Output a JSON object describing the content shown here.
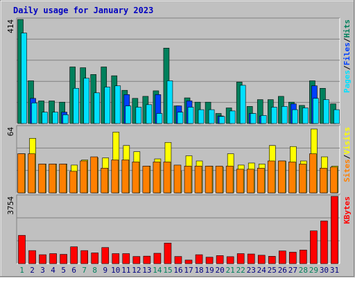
{
  "title": "Daily usage for January 2023",
  "colors": {
    "hits": "#00805c",
    "files": "#0040ff",
    "pages": "#00e0ff",
    "visits": "#ffff00",
    "sites": "#ff8000",
    "kbytes": "#ff0000",
    "weekend_day": "#00805c",
    "weekday": "#000080"
  },
  "chart_data": [
    {
      "type": "bar",
      "name": "hits-files-pages",
      "categories": [
        "1",
        "2",
        "3",
        "4",
        "5",
        "6",
        "7",
        "8",
        "9",
        "10",
        "11",
        "12",
        "13",
        "14",
        "15",
        "16",
        "17",
        "18",
        "19",
        "20",
        "21",
        "22",
        "23",
        "24",
        "25",
        "26",
        "27",
        "28",
        "29",
        "30",
        "31"
      ],
      "weekend_days": [
        "1",
        "7",
        "8",
        "14",
        "15",
        "21",
        "22",
        "28",
        "29"
      ],
      "ymax_label": "414",
      "ylim": [
        0,
        414
      ],
      "series": [
        {
          "name": "Hits",
          "key": "hits",
          "values": [
            414,
            170,
            90,
            90,
            85,
            225,
            222,
            195,
            225,
            190,
            132,
            100,
            108,
            130,
            300,
            70,
            102,
            85,
            85,
            40,
            62,
            165,
            68,
            95,
            95,
            108,
            85,
            72,
            170,
            140,
            78
          ]
        },
        {
          "name": "Files",
          "key": "files",
          "values": [
            0,
            100,
            0,
            0,
            45,
            0,
            0,
            0,
            0,
            0,
            115,
            0,
            0,
            115,
            0,
            70,
            90,
            0,
            0,
            30,
            0,
            0,
            40,
            30,
            0,
            0,
            78,
            0,
            150,
            0,
            0
          ]
        },
        {
          "name": "Pages",
          "key": "pages",
          "values": [
            360,
            82,
            45,
            45,
            35,
            140,
            180,
            122,
            145,
            150,
            70,
            65,
            75,
            40,
            170,
            45,
            65,
            55,
            55,
            28,
            50,
            152,
            40,
            32,
            65,
            68,
            55,
            62,
            100,
            95,
            55
          ]
        }
      ],
      "legend": [
        {
          "text": "Pages",
          "key": "pages"
        },
        {
          "text": "/",
          "key": "sep"
        },
        {
          "text": "Files",
          "key": "files"
        },
        {
          "text": "/",
          "key": "sep"
        },
        {
          "text": "Hits",
          "key": "hits"
        }
      ]
    },
    {
      "type": "bar",
      "name": "visits-sites",
      "categories": [
        "1",
        "2",
        "3",
        "4",
        "5",
        "6",
        "7",
        "8",
        "9",
        "10",
        "11",
        "12",
        "13",
        "14",
        "15",
        "16",
        "17",
        "18",
        "19",
        "20",
        "21",
        "22",
        "23",
        "24",
        "25",
        "26",
        "27",
        "28",
        "29",
        "30",
        "31"
      ],
      "ymax_label": "64",
      "ylim": [
        0,
        64
      ],
      "series": [
        {
          "name": "Visits",
          "key": "visits",
          "values": [
            38,
            53,
            28,
            28,
            28,
            27,
            32,
            34,
            34,
            59,
            46,
            40,
            26,
            33,
            49,
            21,
            36,
            31,
            26,
            25,
            38,
            27,
            29,
            28,
            46,
            31,
            45,
            31,
            62,
            35,
            26
          ]
        },
        {
          "name": "Sites",
          "key": "sites",
          "values": [
            38,
            38,
            28,
            28,
            28,
            21,
            31,
            35,
            24,
            32,
            32,
            30,
            26,
            30,
            30,
            27,
            26,
            26,
            26,
            26,
            26,
            23,
            23,
            24,
            31,
            31,
            30,
            28,
            38,
            24,
            25
          ]
        }
      ],
      "legend": [
        {
          "text": "Sites",
          "key": "sites"
        },
        {
          "text": "/",
          "key": "sep"
        },
        {
          "text": "Visits",
          "key": "visits"
        }
      ]
    },
    {
      "type": "bar",
      "name": "kbytes",
      "categories": [
        "1",
        "2",
        "3",
        "4",
        "5",
        "6",
        "7",
        "8",
        "9",
        "10",
        "11",
        "12",
        "13",
        "14",
        "15",
        "16",
        "17",
        "18",
        "19",
        "20",
        "21",
        "22",
        "23",
        "24",
        "25",
        "26",
        "27",
        "28",
        "29",
        "30",
        "31"
      ],
      "ymax_label": "3754",
      "ylim": [
        0,
        3754
      ],
      "series": [
        {
          "name": "KBytes",
          "key": "kbytes",
          "values": [
            1580,
            730,
            500,
            560,
            520,
            940,
            730,
            600,
            900,
            560,
            560,
            400,
            420,
            580,
            1150,
            400,
            200,
            500,
            360,
            450,
            390,
            560,
            540,
            470,
            410,
            710,
            640,
            760,
            1830,
            2380,
            3754
          ]
        }
      ],
      "legend": [
        {
          "text": "KBytes",
          "key": "kbytes"
        }
      ]
    }
  ]
}
